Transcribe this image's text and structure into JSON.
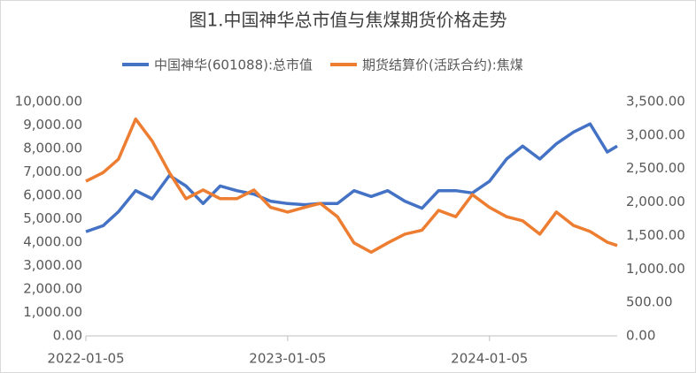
{
  "chart_data": {
    "type": "line",
    "title": "图1.中国神华总市值与焦煤期货价格走势",
    "x": [
      "2022-01-05",
      "2022-02-05",
      "2022-03-05",
      "2022-04-05",
      "2022-05-05",
      "2022-06-05",
      "2022-07-05",
      "2022-08-05",
      "2022-09-05",
      "2022-10-05",
      "2022-11-05",
      "2022-12-05",
      "2023-01-05",
      "2023-02-05",
      "2023-03-05",
      "2023-04-05",
      "2023-05-05",
      "2023-06-05",
      "2023-07-05",
      "2023-08-05",
      "2023-09-05",
      "2023-10-05",
      "2023-11-05",
      "2023-12-05",
      "2024-01-05",
      "2024-02-05",
      "2024-03-05",
      "2024-04-05",
      "2024-05-05",
      "2024-06-05",
      "2024-07-05",
      "2024-08-05",
      "2024-08-23"
    ],
    "series": [
      {
        "name": "中国神华(601088):总市值",
        "color": "#4472c4",
        "axis": "y",
        "values": [
          4450,
          4700,
          5300,
          6200,
          5850,
          6850,
          6400,
          5650,
          6400,
          6200,
          6050,
          5750,
          5650,
          5600,
          5650,
          5650,
          6200,
          5950,
          6200,
          5750,
          5450,
          6200,
          6200,
          6100,
          6600,
          7550,
          8100,
          7550,
          8200,
          8700,
          9050,
          7850,
          8100
        ]
      },
      {
        "name": "期货结算价(活跃合约):焦煤",
        "color": "#ed7d31",
        "axis": "y2",
        "values": [
          2310,
          2440,
          2640,
          3240,
          2910,
          2440,
          2050,
          2180,
          2050,
          2050,
          2180,
          1920,
          1850,
          1920,
          1980,
          1780,
          1390,
          1250,
          1390,
          1520,
          1580,
          1875,
          1780,
          2110,
          1920,
          1780,
          1720,
          1520,
          1850,
          1650,
          1560,
          1400,
          1350
        ]
      }
    ],
    "xlim": [
      "2022-01-05",
      "2024-08-23"
    ],
    "xticks": [
      "2022-01-05",
      "2023-01-05",
      "2024-01-05"
    ],
    "ylim": [
      0,
      10000
    ],
    "yticks": [
      {
        "value": 0,
        "label": "0.00"
      },
      {
        "value": 1000,
        "label": "1,000.00"
      },
      {
        "value": 2000,
        "label": "2,000.00"
      },
      {
        "value": 3000,
        "label": "3,000.00"
      },
      {
        "value": 4000,
        "label": "4,000.00"
      },
      {
        "value": 5000,
        "label": "5,000.00"
      },
      {
        "value": 6000,
        "label": "6,000.00"
      },
      {
        "value": 7000,
        "label": "7,000.00"
      },
      {
        "value": 8000,
        "label": "8,000.00"
      },
      {
        "value": 9000,
        "label": "9,000.00"
      },
      {
        "value": 10000,
        "label": "10,000.00"
      }
    ],
    "y2lim": [
      0,
      3500
    ],
    "y2ticks": [
      {
        "value": 0,
        "label": "0.00"
      },
      {
        "value": 500,
        "label": "500.00"
      },
      {
        "value": 1000,
        "label": "1,000.00"
      },
      {
        "value": 1500,
        "label": "1,500.00"
      },
      {
        "value": 2000,
        "label": "2,000.00"
      },
      {
        "value": 2500,
        "label": "2,500.00"
      },
      {
        "value": 3000,
        "label": "3,000.00"
      },
      {
        "value": 3500,
        "label": "3,500.00"
      }
    ],
    "legend": "top"
  }
}
